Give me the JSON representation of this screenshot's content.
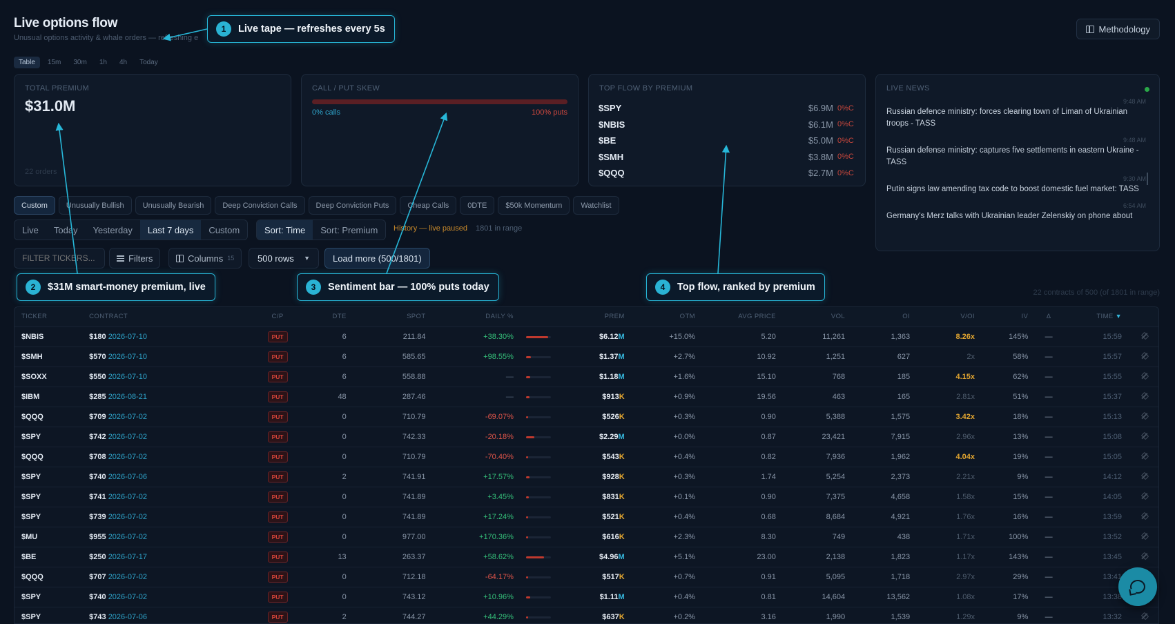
{
  "header": {
    "title": "Live options flow",
    "subtitle": "Unusual options activity & whale orders — refreshing e",
    "methodology_label": "Methodology"
  },
  "view_tabs": [
    "Table",
    "15m",
    "30m",
    "1h",
    "4h",
    "Today"
  ],
  "cards": {
    "total": {
      "label": "TOTAL PREMIUM",
      "value": "$31.0M",
      "orders": "22 orders"
    },
    "skew": {
      "label": "CALL / PUT SKEW",
      "calls": "0% calls",
      "puts": "100% puts",
      "put_share": 1.0
    },
    "top_flow": {
      "label": "TOP FLOW BY PREMIUM",
      "rows": [
        {
          "ticker": "$SPY",
          "amount": "$6.9M",
          "pct": "0%C"
        },
        {
          "ticker": "$NBIS",
          "amount": "$6.1M",
          "pct": "0%C"
        },
        {
          "ticker": "$BE",
          "amount": "$5.0M",
          "pct": "0%C"
        },
        {
          "ticker": "$SMH",
          "amount": "$3.8M",
          "pct": "0%C"
        },
        {
          "ticker": "$QQQ",
          "amount": "$2.7M",
          "pct": "0%C"
        }
      ]
    },
    "news": {
      "label": "LIVE NEWS",
      "items": [
        {
          "time": "9:48 AM",
          "headline": "Russian defence ministry: forces clearing town of Liman of Ukrainian troops - TASS"
        },
        {
          "time": "9:48 AM",
          "headline": "Russian defense ministry: captures five settlements in eastern Ukraine - TASS"
        },
        {
          "time": "9:30 AM",
          "headline": "Putin signs law amending tax code to boost domestic fuel market: TASS"
        },
        {
          "time": "6:54 AM",
          "headline": "Germany's Merz talks with Ukrainian leader Zelenskiy on phone about"
        }
      ]
    }
  },
  "presets": [
    "Custom",
    "Unusually Bullish",
    "Unusually Bearish",
    "Deep Conviction Calls",
    "Deep Conviction Puts",
    "Cheap Calls",
    "0DTE",
    "$50k Momentum",
    "Watchlist"
  ],
  "range_tabs": [
    "Live",
    "Today",
    "Yesterday",
    "Last 7 days",
    "Custom"
  ],
  "sort_tabs": [
    "Sort: Time",
    "Sort: Premium"
  ],
  "history_note": "History — live paused",
  "range_count": "1801 in range",
  "filters": {
    "ticker_placeholder": "FILTER TICKERS...",
    "filters_label": "Filters",
    "columns_label": "Columns",
    "columns_count": "15",
    "rows_value": "500 rows",
    "load_more_label": "Load more (500/1801)"
  },
  "contracts_summary": "22 contracts of 500 (of 1801 in range)",
  "table": {
    "headers": {
      "ticker": "TICKER",
      "contract": "CONTRACT",
      "cp": "C/P",
      "dte": "DTE",
      "spot": "SPOT",
      "daily": "DAILY %",
      "prem": "PREM",
      "otm": "OTM",
      "avg": "AVG PRICE",
      "vol": "VOL",
      "oi": "OI",
      "voi": "V/OI",
      "iv": "IV",
      "delta": "Δ",
      "time": "TIME"
    },
    "rows": [
      {
        "ticker": "$NBIS",
        "strike": "$180",
        "exp": "2026-07-10",
        "cp": "PUT",
        "dte": "6",
        "spot": "211.84",
        "daily": "+38.30%",
        "prem": "$6.12",
        "unit": "M",
        "otm": "+15.0%",
        "avg": "5.20",
        "vol": "11,261",
        "oi": "1,363",
        "voi": "8.26x",
        "iv": "145%",
        "delta": "—",
        "time": "15:59",
        "bar": 0.89
      },
      {
        "ticker": "$SMH",
        "strike": "$570",
        "exp": "2026-07-10",
        "cp": "PUT",
        "dte": "6",
        "spot": "585.65",
        "daily": "+98.55%",
        "prem": "$1.37",
        "unit": "M",
        "otm": "+2.7%",
        "avg": "10.92",
        "vol": "1,251",
        "oi": "627",
        "voi": "2x",
        "iv": "58%",
        "delta": "—",
        "time": "15:57",
        "bar": 0.2
      },
      {
        "ticker": "$SOXX",
        "strike": "$550",
        "exp": "2026-07-10",
        "cp": "PUT",
        "dte": "6",
        "spot": "558.88",
        "daily": "—",
        "prem": "$1.18",
        "unit": "M",
        "otm": "+1.6%",
        "avg": "15.10",
        "vol": "768",
        "oi": "185",
        "voi": "4.15x",
        "iv": "62%",
        "delta": "—",
        "time": "15:55",
        "bar": 0.17
      },
      {
        "ticker": "$IBM",
        "strike": "$285",
        "exp": "2026-08-21",
        "cp": "PUT",
        "dte": "48",
        "spot": "287.46",
        "daily": "—",
        "prem": "$913",
        "unit": "K",
        "otm": "+0.9%",
        "avg": "19.56",
        "vol": "463",
        "oi": "165",
        "voi": "2.81x",
        "iv": "51%",
        "delta": "—",
        "time": "15:37",
        "bar": 0.13
      },
      {
        "ticker": "$QQQ",
        "strike": "$709",
        "exp": "2026-07-02",
        "cp": "PUT",
        "dte": "0",
        "spot": "710.79",
        "daily": "-69.07%",
        "prem": "$526",
        "unit": "K",
        "otm": "+0.3%",
        "avg": "0.90",
        "vol": "5,388",
        "oi": "1,575",
        "voi": "3.42x",
        "iv": "18%",
        "delta": "—",
        "time": "15:13",
        "bar": 0.08
      },
      {
        "ticker": "$SPY",
        "strike": "$742",
        "exp": "2026-07-02",
        "cp": "PUT",
        "dte": "0",
        "spot": "742.33",
        "daily": "-20.18%",
        "prem": "$2.29",
        "unit": "M",
        "otm": "+0.0%",
        "avg": "0.87",
        "vol": "23,421",
        "oi": "7,915",
        "voi": "2.96x",
        "iv": "13%",
        "delta": "—",
        "time": "15:08",
        "bar": 0.33
      },
      {
        "ticker": "$QQQ",
        "strike": "$708",
        "exp": "2026-07-02",
        "cp": "PUT",
        "dte": "0",
        "spot": "710.79",
        "daily": "-70.40%",
        "prem": "$543",
        "unit": "K",
        "otm": "+0.4%",
        "avg": "0.82",
        "vol": "7,936",
        "oi": "1,962",
        "voi": "4.04x",
        "iv": "19%",
        "delta": "—",
        "time": "15:05",
        "bar": 0.08
      },
      {
        "ticker": "$SPY",
        "strike": "$740",
        "exp": "2026-07-06",
        "cp": "PUT",
        "dte": "2",
        "spot": "741.91",
        "daily": "+17.57%",
        "prem": "$928",
        "unit": "K",
        "otm": "+0.3%",
        "avg": "1.74",
        "vol": "5,254",
        "oi": "2,373",
        "voi": "2.21x",
        "iv": "9%",
        "delta": "—",
        "time": "14:12",
        "bar": 0.13
      },
      {
        "ticker": "$SPY",
        "strike": "$741",
        "exp": "2026-07-02",
        "cp": "PUT",
        "dte": "0",
        "spot": "741.89",
        "daily": "+3.45%",
        "prem": "$831",
        "unit": "K",
        "otm": "+0.1%",
        "avg": "0.90",
        "vol": "7,375",
        "oi": "4,658",
        "voi": "1.58x",
        "iv": "15%",
        "delta": "—",
        "time": "14:05",
        "bar": 0.12
      },
      {
        "ticker": "$SPY",
        "strike": "$739",
        "exp": "2026-07-02",
        "cp": "PUT",
        "dte": "0",
        "spot": "741.89",
        "daily": "+17.24%",
        "prem": "$521",
        "unit": "K",
        "otm": "+0.4%",
        "avg": "0.68",
        "vol": "8,684",
        "oi": "4,921",
        "voi": "1.76x",
        "iv": "16%",
        "delta": "—",
        "time": "13:59",
        "bar": 0.08
      },
      {
        "ticker": "$MU",
        "strike": "$955",
        "exp": "2026-07-02",
        "cp": "PUT",
        "dte": "0",
        "spot": "977.00",
        "daily": "+170.36%",
        "prem": "$616",
        "unit": "K",
        "otm": "+2.3%",
        "avg": "8.30",
        "vol": "749",
        "oi": "438",
        "voi": "1.71x",
        "iv": "100%",
        "delta": "—",
        "time": "13:52",
        "bar": 0.09
      },
      {
        "ticker": "$BE",
        "strike": "$250",
        "exp": "2026-07-17",
        "cp": "PUT",
        "dte": "13",
        "spot": "263.37",
        "daily": "+58.62%",
        "prem": "$4.96",
        "unit": "M",
        "otm": "+5.1%",
        "avg": "23.00",
        "vol": "2,138",
        "oi": "1,823",
        "voi": "1.17x",
        "iv": "143%",
        "delta": "—",
        "time": "13:45",
        "bar": 0.72
      },
      {
        "ticker": "$QQQ",
        "strike": "$707",
        "exp": "2026-07-02",
        "cp": "PUT",
        "dte": "0",
        "spot": "712.18",
        "daily": "-64.17%",
        "prem": "$517",
        "unit": "K",
        "otm": "+0.7%",
        "avg": "0.91",
        "vol": "5,095",
        "oi": "1,718",
        "voi": "2.97x",
        "iv": "29%",
        "delta": "—",
        "time": "13:41",
        "bar": 0.08
      },
      {
        "ticker": "$SPY",
        "strike": "$740",
        "exp": "2026-07-02",
        "cp": "PUT",
        "dte": "0",
        "spot": "743.12",
        "daily": "+10.96%",
        "prem": "$1.11",
        "unit": "M",
        "otm": "+0.4%",
        "avg": "0.81",
        "vol": "14,604",
        "oi": "13,562",
        "voi": "1.08x",
        "iv": "17%",
        "delta": "—",
        "time": "13:38",
        "bar": 0.16
      },
      {
        "ticker": "$SPY",
        "strike": "$743",
        "exp": "2026-07-06",
        "cp": "PUT",
        "dte": "2",
        "spot": "744.27",
        "daily": "+44.29%",
        "prem": "$637",
        "unit": "K",
        "otm": "+0.2%",
        "avg": "3.16",
        "vol": "1,990",
        "oi": "1,539",
        "voi": "1.29x",
        "iv": "9%",
        "delta": "—",
        "time": "13:32",
        "bar": 0.09
      }
    ]
  },
  "callouts": [
    {
      "num": "1",
      "text": "Live tape — refreshes every 5s"
    },
    {
      "num": "2",
      "text": "$31M smart-money premium, live"
    },
    {
      "num": "3",
      "text": "Sentiment bar — 100% puts today"
    },
    {
      "num": "4",
      "text": "Top flow, ranked by premium"
    }
  ],
  "colors": {
    "accent": "#27b7d8",
    "put": "#d6453a",
    "positive": "#35c07a",
    "negative": "#e0554a",
    "highlight": "#e3a630"
  }
}
